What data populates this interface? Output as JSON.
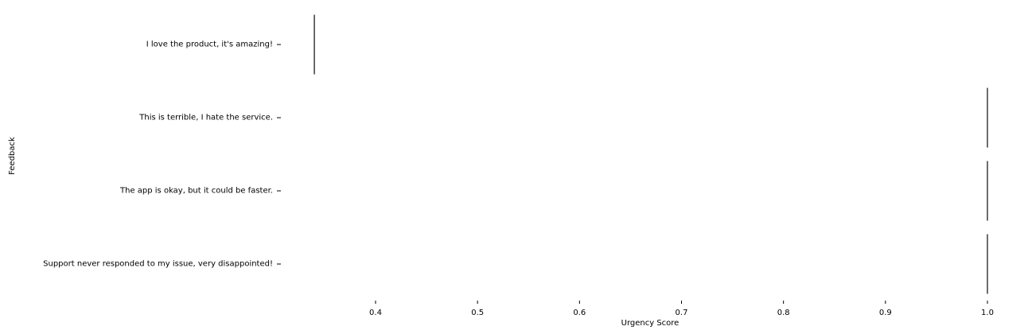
{
  "chart_data": {
    "type": "box",
    "orientation": "horizontal",
    "title": "",
    "xlabel": "Urgency Score",
    "ylabel": "Feedback",
    "categories": [
      "I love the product, it's amazing!",
      "This is terrible, I hate the service.",
      "The app is okay, but it could be faster.",
      "Support never responded to my issue, very disappointed!"
    ],
    "values": [
      0.34,
      1.0,
      1.0,
      1.0
    ],
    "xlim": [
      0.34,
      1.0
    ],
    "xticks": [
      0.4,
      0.5,
      0.6,
      0.7,
      0.8,
      0.9,
      1.0
    ],
    "xtick_labels": [
      "0.4",
      "0.5",
      "0.6",
      "0.7",
      "0.8",
      "0.9",
      "1.0"
    ],
    "grid": false,
    "legend": "none",
    "mark_color": "#3b3b3b"
  }
}
